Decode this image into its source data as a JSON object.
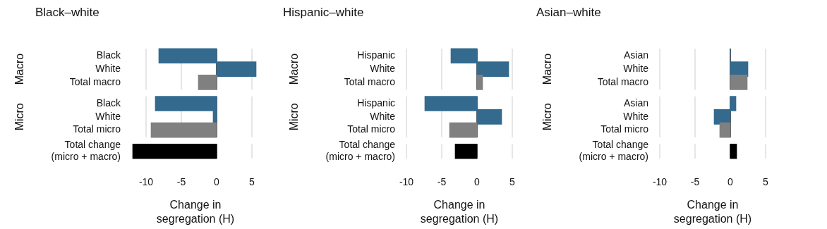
{
  "chart_data": [
    {
      "type": "bar",
      "orientation": "horizontal",
      "title": "Black–white",
      "categories": [
        "Black",
        "White",
        "Total macro",
        "Black",
        "White",
        "Total micro",
        "Total change\n(micro + macro)"
      ],
      "values": [
        -8.2,
        5.6,
        -2.6,
        -8.7,
        -0.5,
        -9.3,
        -11.9
      ],
      "colors": [
        "#336a8e",
        "#336a8e",
        "#808080",
        "#336a8e",
        "#336a8e",
        "#808080",
        "#000000"
      ],
      "xlim": [
        -12,
        6
      ],
      "xticks": [
        -10,
        -5,
        0,
        5
      ],
      "xlabel": "Change in\nsegregation (H)",
      "annotations": [
        "Macro",
        "Micro"
      ],
      "grid": "x",
      "legend": false
    },
    {
      "type": "bar",
      "orientation": "horizontal",
      "title": "Hispanic–white",
      "categories": [
        "Hispanic",
        "White",
        "Total macro",
        "Hispanic",
        "White",
        "Total micro",
        "Total change\n(micro + macro)"
      ],
      "values": [
        -3.7,
        4.5,
        0.8,
        -7.4,
        3.5,
        -3.9,
        -3.1
      ],
      "colors": [
        "#336a8e",
        "#336a8e",
        "#808080",
        "#336a8e",
        "#336a8e",
        "#808080",
        "#000000"
      ],
      "xlim": [
        -10,
        5
      ],
      "xticks": [
        -10,
        -5,
        0,
        5
      ],
      "xlabel": "Change in\nsegregation (H)",
      "annotations": [
        "Macro",
        "Micro"
      ],
      "grid": "x",
      "legend": false
    },
    {
      "type": "bar",
      "orientation": "horizontal",
      "title": "Asian–white",
      "categories": [
        "Asian",
        "White",
        "Total macro",
        "Asian",
        "White",
        "Total micro",
        "Total change\n(micro + macro)"
      ],
      "values": [
        0,
        2.5,
        2.4,
        0.8,
        -2.3,
        -1.5,
        0.9
      ],
      "colors": [
        "#336a8e",
        "#336a8e",
        "#808080",
        "#336a8e",
        "#336a8e",
        "#808080",
        "#000000"
      ],
      "xlim": [
        -10,
        5
      ],
      "xticks": [
        -10,
        -5,
        0,
        5
      ],
      "xlabel": "Change in\nsegregation (H)",
      "annotations": [
        "Macro",
        "Micro"
      ],
      "grid": "x",
      "legend": false
    }
  ]
}
